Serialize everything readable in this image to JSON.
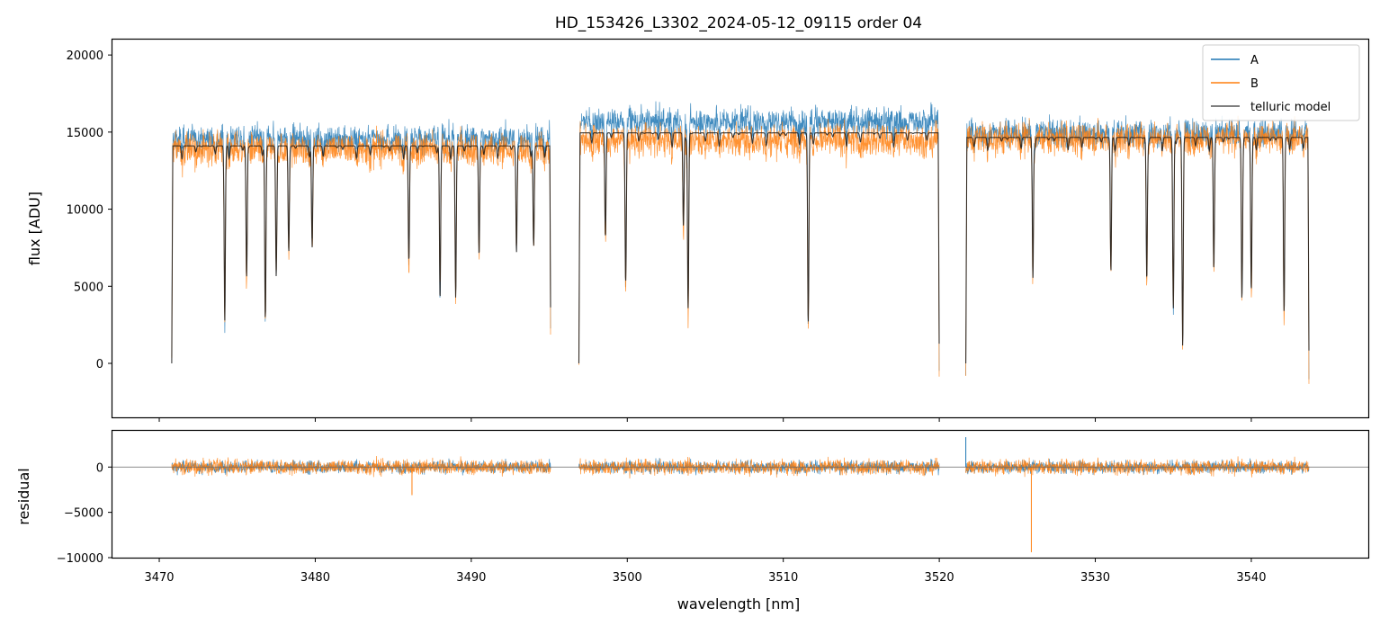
{
  "chart_data": [
    {
      "type": "line",
      "title": "HD_153426_L3302_2024-05-12_09115  order 04",
      "xlabel": "",
      "ylabel": "flux [ADU]",
      "xlim": [
        3467,
        3547.5
      ],
      "ylim": [
        -3500,
        21000
      ],
      "x_ticks": [
        3470,
        3480,
        3490,
        3500,
        3510,
        3520,
        3530,
        3540
      ],
      "y_ticks": [
        0,
        5000,
        10000,
        15000,
        20000
      ],
      "y_tick_labels": [
        "0",
        "5000",
        "10000",
        "15000",
        "20000"
      ],
      "legend_position": "top-right",
      "segments": [
        {
          "x_start": 3470.8,
          "x_end": 3495.1,
          "continuum_A": 14600,
          "continuum_B": 13900
        },
        {
          "x_start": 3496.9,
          "x_end": 3520.0,
          "continuum_A": 15700,
          "continuum_B": 14500
        },
        {
          "x_start": 3521.7,
          "x_end": 3543.7,
          "continuum_A": 15000,
          "continuum_B": 14600
        }
      ],
      "absorption_lines": [
        {
          "x": 3474.2,
          "y": 2800
        },
        {
          "x": 3475.6,
          "y": 5600
        },
        {
          "x": 3476.8,
          "y": 2900
        },
        {
          "x": 3477.5,
          "y": 6000
        },
        {
          "x": 3478.3,
          "y": 7300
        },
        {
          "x": 3479.8,
          "y": 7600
        },
        {
          "x": 3486.0,
          "y": 6700
        },
        {
          "x": 3488.0,
          "y": 4200
        },
        {
          "x": 3489.0,
          "y": 4300
        },
        {
          "x": 3490.5,
          "y": 7100
        },
        {
          "x": 3492.9,
          "y": 7300
        },
        {
          "x": 3494.0,
          "y": 7700
        },
        {
          "x": 3498.6,
          "y": 8300
        },
        {
          "x": 3499.9,
          "y": 5500
        },
        {
          "x": 3503.6,
          "y": 9000
        },
        {
          "x": 3503.9,
          "y": 3600
        },
        {
          "x": 3511.6,
          "y": 2600
        },
        {
          "x": 3526.0,
          "y": 5600
        },
        {
          "x": 3531.0,
          "y": 6000
        },
        {
          "x": 3533.3,
          "y": 5500
        },
        {
          "x": 3535.0,
          "y": 3600
        },
        {
          "x": 3535.6,
          "y": 1100
        },
        {
          "x": 3537.6,
          "y": 6200
        },
        {
          "x": 3539.4,
          "y": 4300
        },
        {
          "x": 3540.0,
          "y": 4800
        },
        {
          "x": 3542.1,
          "y": 3300
        }
      ],
      "series": [
        {
          "name": "A",
          "color": "#1f77b4"
        },
        {
          "name": "B",
          "color": "#ff7f0e"
        },
        {
          "name": "telluric model",
          "color": "#555555"
        }
      ]
    },
    {
      "type": "line",
      "title": "",
      "xlabel": "wavelength [nm]",
      "ylabel": "residual",
      "xlim": [
        3467,
        3547.5
      ],
      "ylim": [
        -10000,
        4000
      ],
      "x_ticks": [
        3470,
        3480,
        3490,
        3500,
        3510,
        3520,
        3530,
        3540
      ],
      "x_tick_labels": [
        "3470",
        "3480",
        "3490",
        "3500",
        "3510",
        "3520",
        "3530",
        "3540"
      ],
      "y_ticks": [
        0,
        -5000,
        -10000
      ],
      "y_tick_labels": [
        "0",
        "−5000",
        "−10000"
      ],
      "reference_line": 0,
      "spikes": [
        {
          "x": 3525.9,
          "y": -9400
        },
        {
          "x": 3521.7,
          "y": 3300
        },
        {
          "x": 3486.2,
          "y": -3100
        }
      ],
      "series": [
        {
          "name": "A",
          "color": "#1f77b4"
        },
        {
          "name": "B",
          "color": "#ff7f0e"
        }
      ]
    }
  ]
}
